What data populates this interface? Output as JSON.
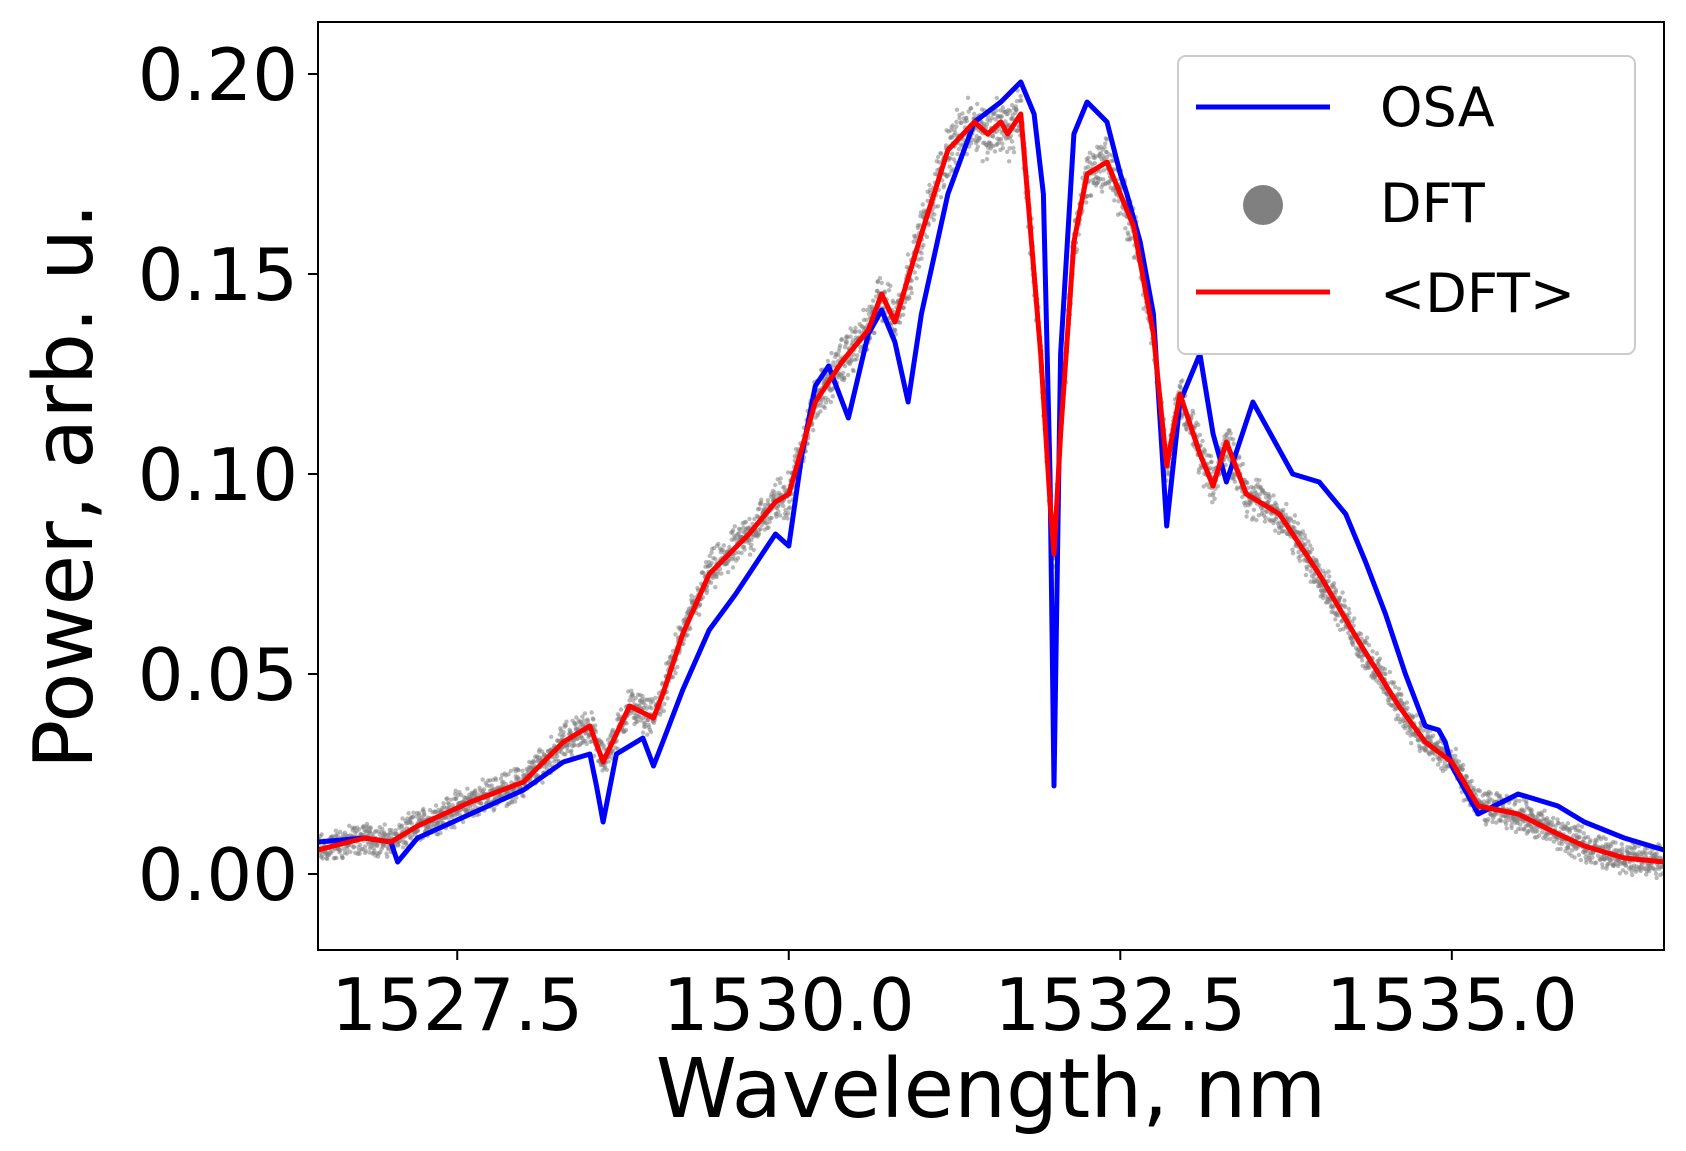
{
  "chart_data": {
    "type": "line",
    "xlabel": "Wavelength, nm",
    "ylabel": "Power, arb. u.",
    "xlim": [
      1526.45,
      1536.6
    ],
    "ylim": [
      -0.019,
      0.213
    ],
    "xticks": [
      1527.5,
      1530.0,
      1532.5,
      1535.0
    ],
    "xtick_labels": [
      "1527.5",
      "1530.0",
      "1532.5",
      "1535.0"
    ],
    "yticks": [
      0.0,
      0.05,
      0.1,
      0.15,
      0.2
    ],
    "ytick_labels": [
      "0.00",
      "0.05",
      "0.10",
      "0.15",
      "0.20"
    ],
    "grid": false,
    "legend_position": "top-right",
    "series": [
      {
        "name": "OSA",
        "style": "line",
        "color": "#0000ff",
        "x": [
          1526.45,
          1526.8,
          1527.0,
          1527.05,
          1527.2,
          1527.6,
          1528.0,
          1528.3,
          1528.5,
          1528.55,
          1528.6,
          1528.7,
          1528.9,
          1528.98,
          1529.05,
          1529.2,
          1529.4,
          1529.6,
          1529.8,
          1529.9,
          1530.0,
          1530.1,
          1530.2,
          1530.3,
          1530.45,
          1530.6,
          1530.7,
          1530.8,
          1530.9,
          1531.0,
          1531.2,
          1531.4,
          1531.6,
          1531.75,
          1531.85,
          1531.92,
          1531.97,
          1532.0,
          1532.05,
          1532.15,
          1532.25,
          1532.4,
          1532.5,
          1532.55,
          1532.65,
          1532.75,
          1532.85,
          1532.95,
          1533.1,
          1533.2,
          1533.3,
          1533.5,
          1533.8,
          1534.0,
          1534.2,
          1534.35,
          1534.5,
          1534.65,
          1534.8,
          1534.9,
          1534.95,
          1535.0,
          1535.2,
          1535.5,
          1535.8,
          1536.0,
          1536.3,
          1536.6
        ],
        "y": [
          0.008,
          0.009,
          0.008,
          0.003,
          0.009,
          0.015,
          0.021,
          0.028,
          0.03,
          0.022,
          0.013,
          0.03,
          0.034,
          0.027,
          0.033,
          0.046,
          0.061,
          0.07,
          0.08,
          0.085,
          0.082,
          0.105,
          0.122,
          0.127,
          0.114,
          0.135,
          0.141,
          0.133,
          0.118,
          0.14,
          0.17,
          0.188,
          0.193,
          0.198,
          0.19,
          0.17,
          0.1,
          0.022,
          0.13,
          0.185,
          0.193,
          0.188,
          0.175,
          0.17,
          0.158,
          0.14,
          0.087,
          0.118,
          0.13,
          0.11,
          0.098,
          0.118,
          0.1,
          0.098,
          0.09,
          0.078,
          0.065,
          0.05,
          0.037,
          0.036,
          0.033,
          0.027,
          0.015,
          0.02,
          0.017,
          0.013,
          0.009,
          0.006
        ]
      },
      {
        "name": "DFT",
        "style": "scatter-band",
        "color": "#808080"
      },
      {
        "name": "<DFT>",
        "style": "line",
        "color": "#ff0000",
        "x": [
          1526.45,
          1526.8,
          1527.0,
          1527.2,
          1527.6,
          1528.0,
          1528.3,
          1528.5,
          1528.6,
          1528.8,
          1528.98,
          1529.05,
          1529.2,
          1529.4,
          1529.7,
          1529.9,
          1530.0,
          1530.2,
          1530.4,
          1530.6,
          1530.7,
          1530.8,
          1531.0,
          1531.2,
          1531.4,
          1531.5,
          1531.6,
          1531.65,
          1531.75,
          1531.8,
          1531.9,
          1531.97,
          1532.0,
          1532.05,
          1532.15,
          1532.25,
          1532.4,
          1532.6,
          1532.75,
          1532.85,
          1532.95,
          1533.1,
          1533.2,
          1533.3,
          1533.45,
          1533.7,
          1534.0,
          1534.3,
          1534.6,
          1534.8,
          1535.0,
          1535.2,
          1535.5,
          1535.8,
          1536.0,
          1536.3,
          1536.6
        ],
        "y": [
          0.006,
          0.009,
          0.008,
          0.012,
          0.018,
          0.023,
          0.033,
          0.037,
          0.028,
          0.042,
          0.039,
          0.045,
          0.06,
          0.075,
          0.085,
          0.093,
          0.095,
          0.118,
          0.128,
          0.136,
          0.145,
          0.138,
          0.16,
          0.181,
          0.188,
          0.185,
          0.188,
          0.185,
          0.19,
          0.17,
          0.13,
          0.093,
          0.08,
          0.11,
          0.158,
          0.175,
          0.178,
          0.162,
          0.135,
          0.102,
          0.12,
          0.105,
          0.097,
          0.108,
          0.095,
          0.09,
          0.075,
          0.058,
          0.042,
          0.033,
          0.028,
          0.017,
          0.015,
          0.01,
          0.007,
          0.004,
          0.003
        ]
      }
    ]
  }
}
